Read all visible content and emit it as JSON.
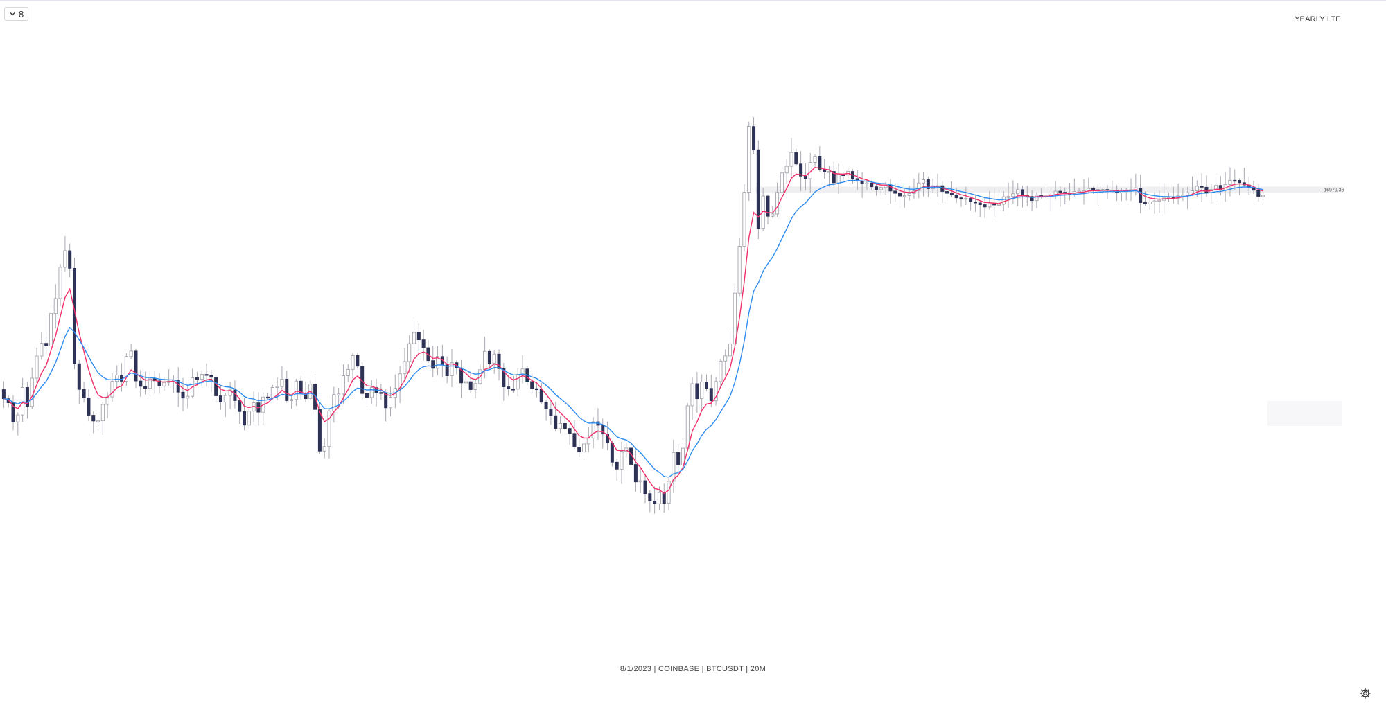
{
  "toolbar": {
    "collapse_count": "8",
    "collapse_icon": "chevron-down-icon"
  },
  "header": {
    "label": "YEARLY LTF"
  },
  "footer": {
    "label": "8/1/2023 | COINBASE | BTCUSDT | 20M"
  },
  "settings": {
    "icon": "gear-icon"
  },
  "colors": {
    "up_fill": "#ffffff",
    "up_border": "#9a9aa6",
    "down_fill": "#2e3356",
    "highlight": "#2c48c8",
    "ema_fast": "#f0306a",
    "ema_slow": "#2f8cf0",
    "level_band": "#efeff2",
    "wick": "#a9a9b3"
  },
  "chart_data": {
    "type": "candlestick",
    "level": {
      "value": 16979.36,
      "label": "16979.36"
    },
    "candles_close": [
      16841.5,
      16838.8,
      16826.2,
      16830.8,
      16848.9,
      16836.4,
      16855.0,
      16869.6,
      16878.0,
      16876.2,
      16897.6,
      16907.5,
      16928.1,
      16939.0,
      16927.4,
      16864.5,
      16847.6,
      16842.0,
      16830.6,
      16826.8,
      16826.9,
      16837.7,
      16842.7,
      16852.9,
      16857.1,
      16853.0,
      16869.3,
      16872.9,
      16853.2,
      16849.6,
      16848.3,
      16854.6,
      16853.3,
      16849.8,
      16852.2,
      16853.2,
      16853.6,
      16845.8,
      16841.9,
      16843.1,
      16855.3,
      16854.3,
      16857.5,
      16857.1,
      16855.6,
      16843.4,
      16839.3,
      16843.6,
      16847.3,
      16840.2,
      16833.0,
      16824.1,
      16833.3,
      16838.8,
      16832.6,
      16842.6,
      16842.1,
      16848.9,
      16849.5,
      16854.4,
      16840.2,
      16841.0,
      16853.1,
      16844.7,
      16841.5,
      16851.1,
      16834.4,
      16807.0,
      16810.0,
      16833.4,
      16844.2,
      16844.6,
      16856.6,
      16860.8,
      16869.9,
      16862.9,
      16844.9,
      16842.3,
      16848.8,
      16845.6,
      16845.5,
      16835.5,
      16842.4,
      16848.3,
      16857.9,
      16866.0,
      16877.8,
      16885.1,
      16880.3,
      16875.1,
      16866.6,
      16861.5,
      16869.3,
      16863.8,
      16856.6,
      16865.2,
      16861.8,
      16851.9,
      16852.7,
      16847.5,
      16851.5,
      16860.6,
      16872.7,
      16864.8,
      16870.9,
      16861.3,
      16849.3,
      16847.9,
      16847.8,
      16857.6,
      16861.1,
      16852.8,
      16848.1,
      16848.0,
      16839.2,
      16834.7,
      16830.3,
      16821.8,
      16825.2,
      16821.9,
      16818.6,
      16809.6,
      16806.5,
      16811.7,
      16815.5,
      16826.3,
      16824.0,
      16818.2,
      16812.3,
      16799.7,
      16795.1,
      16806.9,
      16809.0,
      16798.2,
      16786.7,
      16787.5,
      16779.0,
      16774.1,
      16772.3,
      16779.7,
      16772.6,
      16787.1,
      16806.1,
      16797.8,
      16808.9,
      16836.8,
      16851.4,
      16841.5,
      16852.5,
      16848.3,
      16840.1,
      16852.8,
      16866.3,
      16869.7,
      16877.7,
      16911.1,
      16942.0,
      16977.5,
      17020.8,
      17005.5,
      16953.7,
      16975.0,
      16961.7,
      16963.2,
      16977.4,
      16990.2,
      16994.6,
      17003.7,
      16996.1,
      16988.1,
      16986.4,
      16997.2,
      17001.3,
      16992.6,
      16990.8,
      16991.2,
      16983.7,
      16989.1,
      16988.8,
      16991.2,
      16986.5,
      16984.8,
      16983.2,
      16983.6,
      16981.1,
      16979.2,
      16980.6,
      16982.3,
      16978.3,
      16976.8,
      16975.0,
      16975.3,
      16976.6,
      16978.4,
      16983.6,
      16985.8,
      16979.8,
      16981.8,
      16981.8,
      16978.0,
      16976.8,
      16975.8,
      16973.8,
      16972.9,
      16973.5,
      16971.1,
      16970.5,
      16969.3,
      16967.8,
      16970.4,
      16969.1,
      16969.6,
      16974.5,
      16974.7,
      16976.5,
      16979.2,
      16975.6,
      16974.7,
      16972.0,
      16975.5,
      16975.1,
      16975.1,
      16975.8,
      16978.2,
      16977.5,
      16977.0,
      16976.6,
      16978.0,
      16978.2,
      16978.4,
      16980.0,
      16979.1,
      16978.6,
      16979.3,
      16978.8,
      16978.8,
      16977.1,
      16978.2,
      16979.0,
      16979.2,
      16980.2,
      16970.7,
      16969.8,
      16971.1,
      16971.8,
      16972.2,
      16973.7,
      16974.0,
      16973.5,
      16975.1,
      16975.5,
      16977.2,
      16978.4,
      16981.5,
      16980.8,
      16977.4,
      16979.2,
      16982.0,
      16979.0,
      16982.5,
      16985.4,
      16985.3,
      16983.8,
      16982.3,
      16980.7,
      16978.8,
      16974.6,
      16975.5
    ]
  }
}
